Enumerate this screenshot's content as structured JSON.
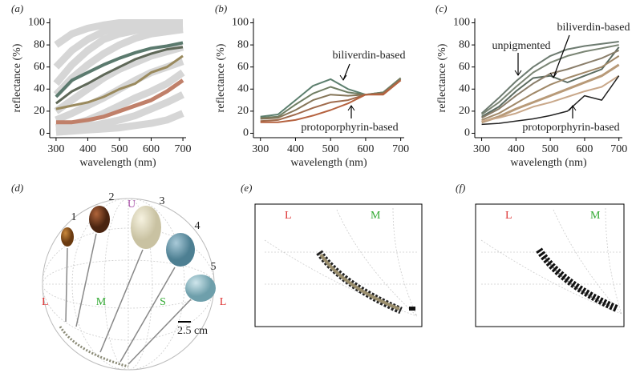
{
  "chart_data": [
    {
      "type": "line",
      "label": "(a)",
      "x_label": "wavelength (nm)",
      "y_label": "reflectance (%)",
      "x": [
        300,
        350,
        400,
        450,
        500,
        550,
        600,
        650,
        700
      ],
      "xlim": [
        280,
        710
      ],
      "ylim": [
        -4,
        104
      ],
      "xticks": [
        300,
        400,
        500,
        600,
        700
      ],
      "yticks": [
        0,
        20,
        40,
        60,
        80,
        100
      ],
      "annotations": [],
      "series": [
        {
          "color": "#d6d6d6",
          "line_width": 9,
          "values": [
            80,
            90,
            95,
            98,
            100,
            100,
            100,
            100,
            100
          ]
        },
        {
          "color": "#d6d6d6",
          "line_width": 9,
          "values": [
            60,
            75,
            85,
            92,
            96,
            98,
            99,
            100,
            100
          ]
        },
        {
          "color": "#d6d6d6",
          "line_width": 9,
          "values": [
            45,
            62,
            75,
            85,
            90,
            93,
            95,
            96,
            97
          ]
        },
        {
          "color": "#d6d6d6",
          "line_width": 9,
          "values": [
            35,
            50,
            62,
            72,
            80,
            86,
            90,
            92,
            94
          ]
        },
        {
          "color": "#d6d6d6",
          "line_width": 9,
          "values": [
            20,
            30,
            40,
            50,
            58,
            64,
            70,
            74,
            78
          ]
        },
        {
          "color": "#d6d6d6",
          "line_width": 9,
          "values": [
            12,
            18,
            25,
            32,
            40,
            48,
            55,
            60,
            65
          ]
        },
        {
          "color": "#d6d6d6",
          "line_width": 9,
          "values": [
            5,
            8,
            12,
            18,
            25,
            32,
            38,
            45,
            55
          ]
        },
        {
          "color": "#d6d6d6",
          "line_width": 9,
          "values": [
            3,
            4,
            6,
            9,
            12,
            16,
            22,
            28,
            35
          ]
        },
        {
          "color": "#d6d6d6",
          "line_width": 9,
          "values": [
            1,
            2,
            3,
            4,
            5,
            7,
            9,
            12,
            18
          ]
        },
        {
          "color": "#5b7a6e",
          "line_width": 4,
          "values": [
            33,
            48,
            55,
            62,
            68,
            73,
            77,
            79,
            82
          ]
        },
        {
          "color": "#5f6858",
          "line_width": 3,
          "values": [
            27,
            38,
            45,
            53,
            60,
            67,
            72,
            76,
            78
          ]
        },
        {
          "color": "#9a8a5e",
          "line_width": 3,
          "values": [
            22,
            25,
            28,
            33,
            40,
            45,
            55,
            60,
            70
          ]
        },
        {
          "color": "#c0806a",
          "line_width": 5,
          "values": [
            10,
            10,
            12,
            15,
            20,
            25,
            30,
            38,
            48
          ]
        }
      ]
    },
    {
      "type": "line",
      "label": "(b)",
      "x_label": "wavelength (nm)",
      "y_label": "reflectance (%)",
      "x": [
        300,
        350,
        400,
        450,
        500,
        550,
        600,
        650,
        700
      ],
      "xlim": [
        280,
        710
      ],
      "ylim": [
        -4,
        104
      ],
      "xticks": [
        300,
        400,
        500,
        600,
        700
      ],
      "yticks": [
        0,
        20,
        40,
        60,
        80,
        100
      ],
      "annotations": [
        "biliverdin-based",
        "protoporphyrin-based"
      ],
      "series": [
        {
          "color": "#5c7f6e",
          "line_width": 2,
          "values": [
            15,
            17,
            30,
            43,
            49,
            40,
            35,
            37,
            50
          ]
        },
        {
          "color": "#6f7d62",
          "line_width": 2,
          "values": [
            14,
            15,
            26,
            36,
            42,
            37,
            35,
            37,
            50
          ]
        },
        {
          "color": "#857558",
          "line_width": 2,
          "values": [
            13,
            14,
            21,
            30,
            35,
            34,
            35,
            36,
            49
          ]
        },
        {
          "color": "#a06b4c",
          "line_width": 2,
          "values": [
            11,
            12,
            17,
            23,
            28,
            30,
            35,
            36,
            48
          ]
        },
        {
          "color": "#b5623f",
          "line_width": 2,
          "values": [
            10,
            10,
            12,
            16,
            21,
            27,
            35,
            35,
            48
          ]
        }
      ]
    },
    {
      "type": "line",
      "label": "(c)",
      "x_label": "wavelength (nm)",
      "y_label": "reflectance (%)",
      "x": [
        300,
        350,
        400,
        450,
        500,
        550,
        600,
        650,
        700
      ],
      "xlim": [
        280,
        710
      ],
      "ylim": [
        -4,
        104
      ],
      "xticks": [
        300,
        400,
        500,
        600,
        700
      ],
      "yticks": [
        0,
        20,
        40,
        60,
        80,
        100
      ],
      "annotations": [
        "unpigmented",
        "biliverdin-based",
        "protoporphyrin-based"
      ],
      "series": [
        {
          "color": "#6d7b70",
          "line_width": 2,
          "values": [
            18,
            32,
            47,
            60,
            70,
            76,
            79,
            81,
            83
          ]
        },
        {
          "color": "#7a8574",
          "line_width": 2,
          "values": [
            17,
            28,
            42,
            55,
            64,
            70,
            74,
            77,
            80
          ]
        },
        {
          "color": "#5b6b60",
          "line_width": 2,
          "values": [
            15,
            24,
            38,
            50,
            52,
            46,
            52,
            58,
            78
          ]
        },
        {
          "color": "#8a7e6a",
          "line_width": 2,
          "values": [
            14,
            22,
            34,
            45,
            54,
            58,
            63,
            68,
            75
          ]
        },
        {
          "color": "#a08868",
          "line_width": 2,
          "values": [
            12,
            18,
            27,
            36,
            44,
            50,
            55,
            60,
            70
          ]
        },
        {
          "color": "#b89a78",
          "line_width": 3,
          "values": [
            10,
            15,
            22,
            28,
            34,
            40,
            46,
            52,
            62
          ]
        },
        {
          "color": "#c9a88a",
          "line_width": 2,
          "values": [
            11,
            14,
            18,
            24,
            28,
            33,
            38,
            42,
            52
          ]
        },
        {
          "color": "#222222",
          "line_width": 1.5,
          "values": [
            8,
            9,
            11,
            13,
            16,
            20,
            34,
            30,
            52
          ]
        }
      ]
    }
  ],
  "panels": [
    {
      "label": "(d)",
      "vertices": [
        "U",
        "L",
        "M",
        "S",
        "L"
      ],
      "eggs": [
        "1",
        "2",
        "3",
        "4",
        "5"
      ],
      "scale_bar": "2.5 cm"
    },
    {
      "label": "(e)",
      "vertices": [
        "L",
        "M"
      ]
    },
    {
      "label": "(f)",
      "vertices": [
        "L",
        "M"
      ]
    }
  ]
}
